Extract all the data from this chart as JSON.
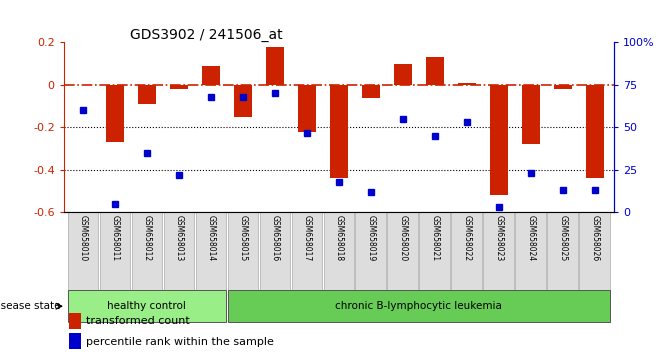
{
  "title": "GDS3902 / 241506_at",
  "samples": [
    "GSM658010",
    "GSM658011",
    "GSM658012",
    "GSM658013",
    "GSM658014",
    "GSM658015",
    "GSM658016",
    "GSM658017",
    "GSM658018",
    "GSM658019",
    "GSM658020",
    "GSM658021",
    "GSM658022",
    "GSM658023",
    "GSM658024",
    "GSM658025",
    "GSM658026"
  ],
  "transformed_count": [
    0.0,
    -0.27,
    -0.09,
    -0.02,
    0.09,
    -0.15,
    0.18,
    -0.22,
    -0.44,
    -0.06,
    0.1,
    0.13,
    0.01,
    -0.52,
    -0.28,
    -0.02,
    -0.44
  ],
  "percentile_rank": [
    60,
    5,
    35,
    22,
    68,
    68,
    70,
    47,
    18,
    12,
    55,
    45,
    53,
    3,
    23,
    13,
    13
  ],
  "healthy_count": 5,
  "bar_color": "#CC2200",
  "dot_color": "#0000CC",
  "dashed_line_color": "#CC2200",
  "ylim_left": [
    -0.6,
    0.2
  ],
  "ylim_right": [
    0,
    100
  ],
  "yticks_left": [
    -0.6,
    -0.4,
    -0.2,
    0.0,
    0.2
  ],
  "ytick_labels_left": [
    "-0.6",
    "-0.4",
    "-0.2",
    "0",
    "0.2"
  ],
  "yticks_right": [
    0,
    25,
    50,
    75,
    100
  ],
  "ytick_labels_right": [
    "0",
    "25",
    "50",
    "75",
    "100%"
  ],
  "group1_label": "healthy control",
  "group2_label": "chronic B-lymphocytic leukemia",
  "group1_color": "#99EE88",
  "group2_color": "#66CC55",
  "sample_box_color": "#DDDDDD",
  "sample_box_edge": "#AAAAAA",
  "disease_state_label": "disease state",
  "legend_tc": "transformed count",
  "legend_pr": "percentile rank within the sample",
  "background_color": "#ffffff"
}
